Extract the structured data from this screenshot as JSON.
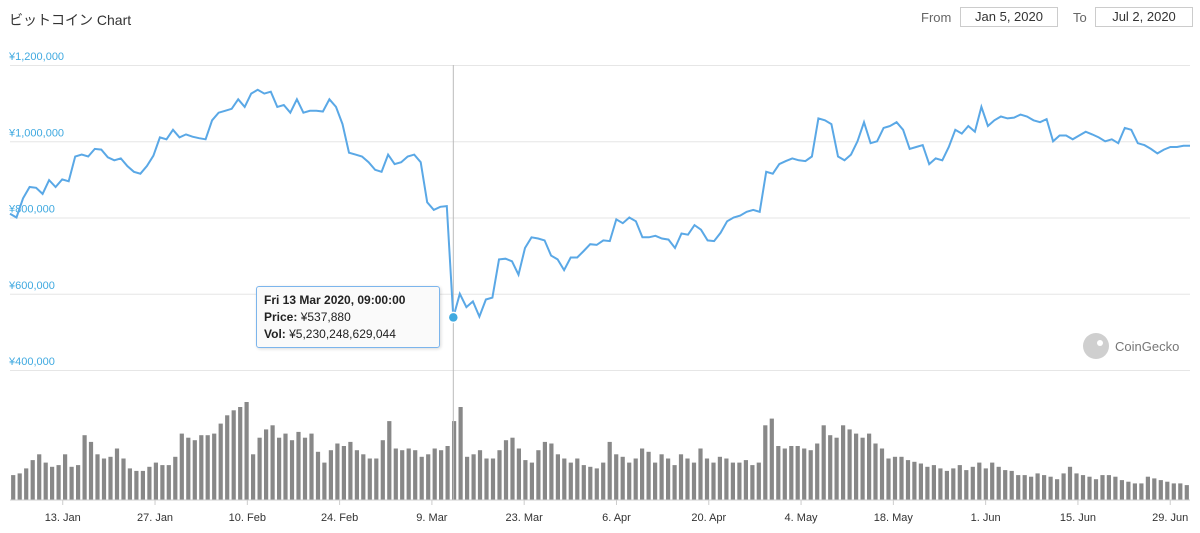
{
  "header": {
    "title": "ビットコイン Chart",
    "from_label": "From",
    "from_value": "Jan 5, 2020",
    "to_label": "To",
    "to_value": "Jul 2, 2020"
  },
  "tooltip": {
    "date": "Fri 13 Mar 2020, 09:00:00",
    "price_label": "Price:",
    "price_value": "¥537,880",
    "vol_label": "Vol:",
    "vol_value": "¥5,230,248,629,044"
  },
  "watermark": {
    "text": "CoinGecko"
  },
  "colors": {
    "price_line": "#5aa8e6",
    "volume_bar": "#888888",
    "axis_label": "#3fa9e0",
    "grid": "#e6e6e6"
  },
  "chart_data": {
    "type": "line",
    "x_start": "2020-01-05",
    "x_end": "2020-07-02",
    "x_tick_labels": [
      "13. Jan",
      "27. Jan",
      "10. Feb",
      "24. Feb",
      "9. Mar",
      "23. Mar",
      "6. Apr",
      "20. Apr",
      "4. May",
      "18. May",
      "1. Jun",
      "15. Jun",
      "29. Jun"
    ],
    "y_tick_labels": [
      "¥1,200,000",
      "¥1,000,000",
      "¥800,000",
      "¥600,000",
      "¥400,000"
    ],
    "ylim": [
      400000,
      1200000
    ],
    "price_series": {
      "values": [
        810000,
        800000,
        850000,
        880000,
        878000,
        862000,
        898000,
        880000,
        900000,
        895000,
        960000,
        965000,
        960000,
        980000,
        978000,
        958000,
        950000,
        955000,
        935000,
        920000,
        915000,
        935000,
        962000,
        1010000,
        1005000,
        1030000,
        1010000,
        1018000,
        1012000,
        1008000,
        1005000,
        1055000,
        1075000,
        1080000,
        1085000,
        1110000,
        1090000,
        1125000,
        1135000,
        1125000,
        1130000,
        1090000,
        1095000,
        1075000,
        1110000,
        1075000,
        1080000,
        1080000,
        1078000,
        1110000,
        1090000,
        1045000,
        970000,
        965000,
        960000,
        945000,
        925000,
        920000,
        965000,
        940000,
        945000,
        960000,
        965000,
        945000,
        840000,
        820000,
        828000,
        830000,
        537880,
        600000,
        565000,
        580000,
        540000,
        585000,
        590000,
        690000,
        692000,
        685000,
        650000,
        720000,
        748000,
        745000,
        740000,
        700000,
        690000,
        662000,
        695000,
        695000,
        712000,
        730000,
        728000,
        740000,
        738000,
        795000,
        785000,
        800000,
        790000,
        748000,
        748000,
        752000,
        745000,
        742000,
        720000,
        758000,
        755000,
        780000,
        768000,
        740000,
        738000,
        760000,
        790000,
        800000,
        805000,
        815000,
        820000,
        815000,
        920000,
        915000,
        940000,
        948000,
        955000,
        950000,
        948000,
        960000,
        1060000,
        1055000,
        1045000,
        960000,
        950000,
        965000,
        1000000,
        1050000,
        995000,
        1000000,
        1035000,
        1040000,
        1050000,
        1030000,
        980000,
        985000,
        990000,
        940000,
        955000,
        950000,
        985000,
        1030000,
        1020000,
        1040000,
        1025000,
        1090000,
        1040000,
        1055000,
        1065000,
        1060000,
        1062000,
        1070000,
        1065000,
        1055000,
        1050000,
        1058000,
        1000000,
        1015000,
        1015000,
        1005000,
        1015000,
        1025000,
        1018000,
        1010000,
        1000000,
        1005000,
        995000,
        1035000,
        1030000,
        995000,
        990000,
        980000,
        968000,
        978000,
        985000,
        985000,
        988000,
        988000
      ]
    },
    "volume_series": {
      "values": [
        30,
        32,
        38,
        48,
        55,
        45,
        40,
        42,
        55,
        40,
        42,
        78,
        70,
        55,
        50,
        52,
        62,
        50,
        38,
        35,
        35,
        40,
        45,
        42,
        42,
        52,
        80,
        75,
        72,
        78,
        78,
        80,
        92,
        102,
        108,
        112,
        118,
        55,
        75,
        85,
        90,
        75,
        80,
        72,
        82,
        75,
        80,
        58,
        45,
        60,
        68,
        65,
        70,
        60,
        55,
        50,
        50,
        72,
        95,
        62,
        60,
        62,
        60,
        52,
        55,
        62,
        60,
        65,
        95,
        112,
        52,
        55,
        60,
        50,
        50,
        60,
        72,
        75,
        62,
        48,
        45,
        60,
        70,
        68,
        55,
        50,
        45,
        50,
        42,
        40,
        38,
        45,
        70,
        55,
        52,
        45,
        50,
        62,
        58,
        45,
        55,
        50,
        42,
        55,
        50,
        45,
        62,
        50,
        45,
        52,
        50,
        45,
        45,
        48,
        42,
        45,
        90,
        98,
        65,
        62,
        65,
        65,
        62,
        60,
        68,
        90,
        78,
        75,
        90,
        85,
        80,
        75,
        80,
        68,
        62,
        50,
        52,
        52,
        48,
        46,
        44,
        40,
        42,
        38,
        35,
        38,
        42,
        36,
        40,
        45,
        38,
        45,
        40,
        36,
        35,
        30,
        30,
        28,
        32,
        30,
        28,
        25,
        32,
        40,
        32,
        30,
        28,
        25,
        30,
        30,
        28,
        24,
        22,
        20,
        20,
        28,
        26,
        24,
        22,
        20,
        20,
        18
      ]
    }
  }
}
